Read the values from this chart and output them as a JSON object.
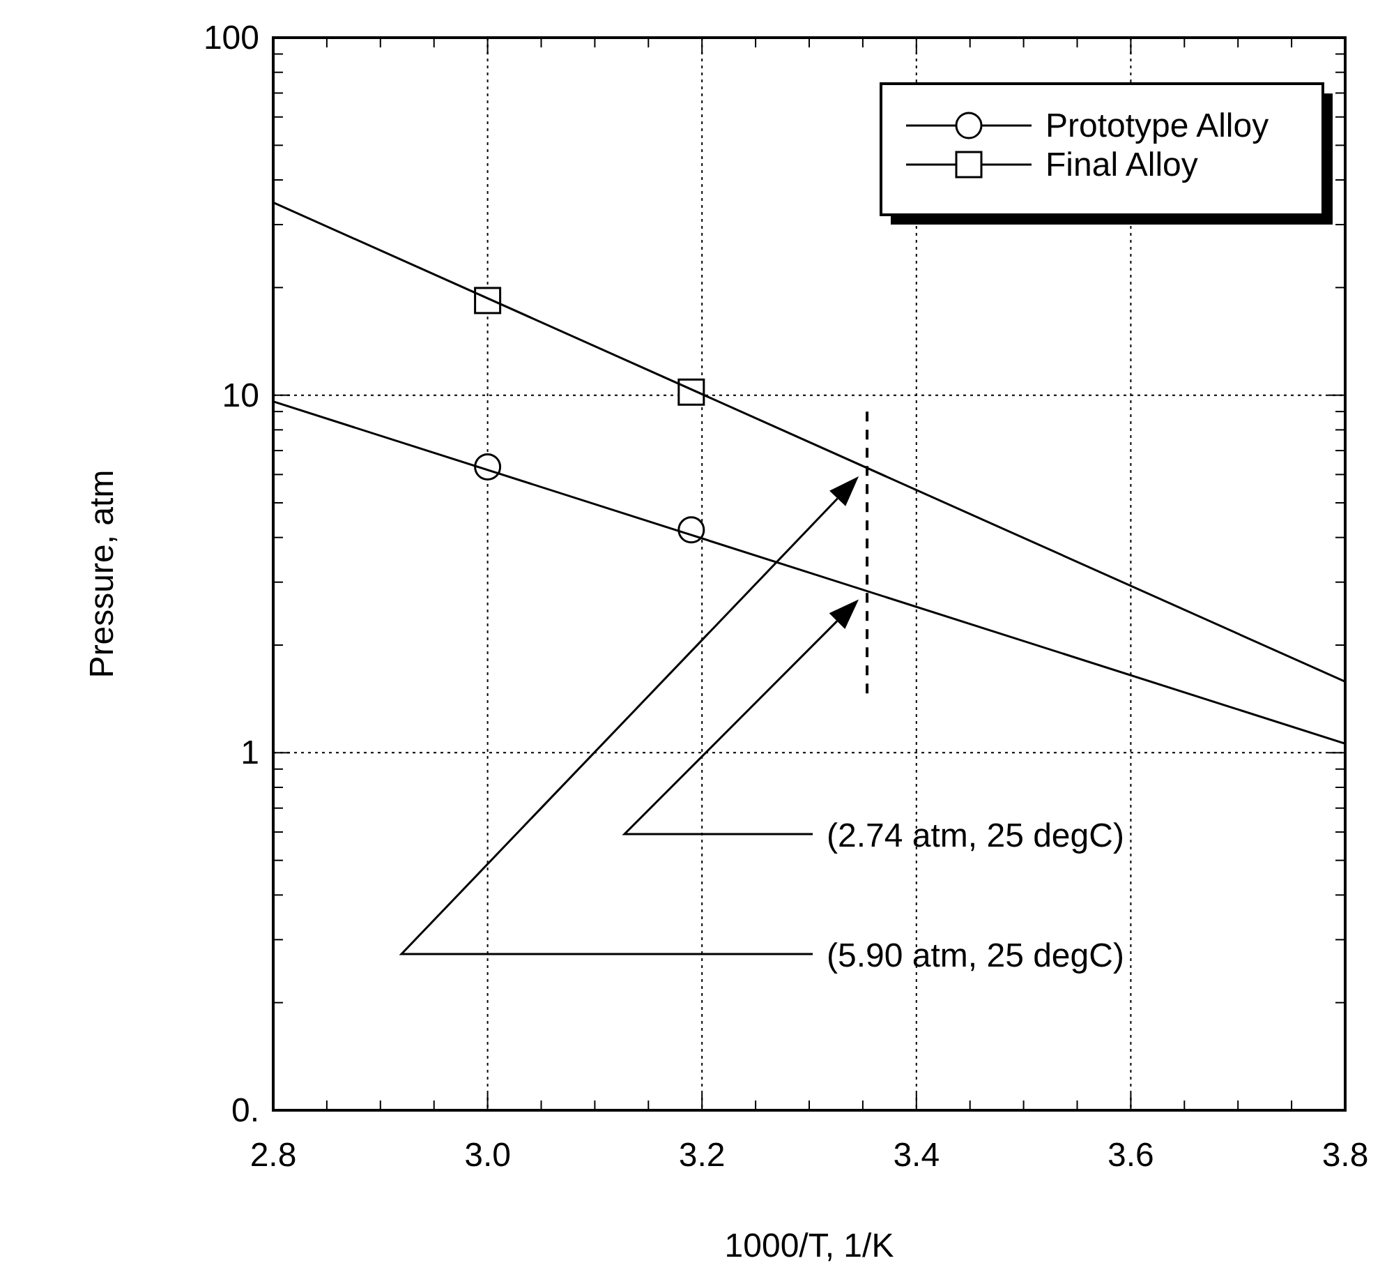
{
  "chart_data": {
    "type": "scatter",
    "xlabel": "1000/T, 1/K",
    "ylabel": "Pressure, atm",
    "log": "y",
    "grid": true,
    "legend": "top right",
    "xlim": [
      2.8,
      3.8
    ],
    "xticks": [
      2.8,
      {
        "value": 3,
        "label": "3.0"
      },
      3.2,
      3.4,
      3.6,
      3.8
    ],
    "ylim": [
      0.1,
      100
    ],
    "yticks": [
      {
        "value": 0.1,
        "label": "0."
      },
      1,
      10,
      100
    ],
    "series": [
      {
        "name": "Prototype Alloy",
        "marker": "circle",
        "color": "#000000",
        "x": [
          3.0,
          3.19
        ],
        "values": [
          6.3,
          4.2
        ]
      },
      {
        "name": "Final Alloy",
        "marker": "square",
        "color": "#000000",
        "x": [
          3.0,
          3.19
        ],
        "values": [
          18.4,
          10.2
        ]
      },
      {
        "type": "line",
        "color": "#000000",
        "line_style": "solid",
        "x": [
          2.8,
          3.8
        ],
        "values": [
          9.6,
          1.06
        ]
      },
      {
        "type": "line",
        "color": "#000000",
        "line_style": "solid",
        "x": [
          2.8,
          3.8
        ],
        "values": [
          34.6,
          1.58
        ]
      }
    ],
    "ref_lines": [
      {
        "axis": "x",
        "value": 3.354,
        "line_style": "dashed",
        "color": "#000000"
      }
    ],
    "annotations": [
      "(2.74 atm, 25 degC)",
      "(5.90 atm, 25 degC)"
    ]
  }
}
